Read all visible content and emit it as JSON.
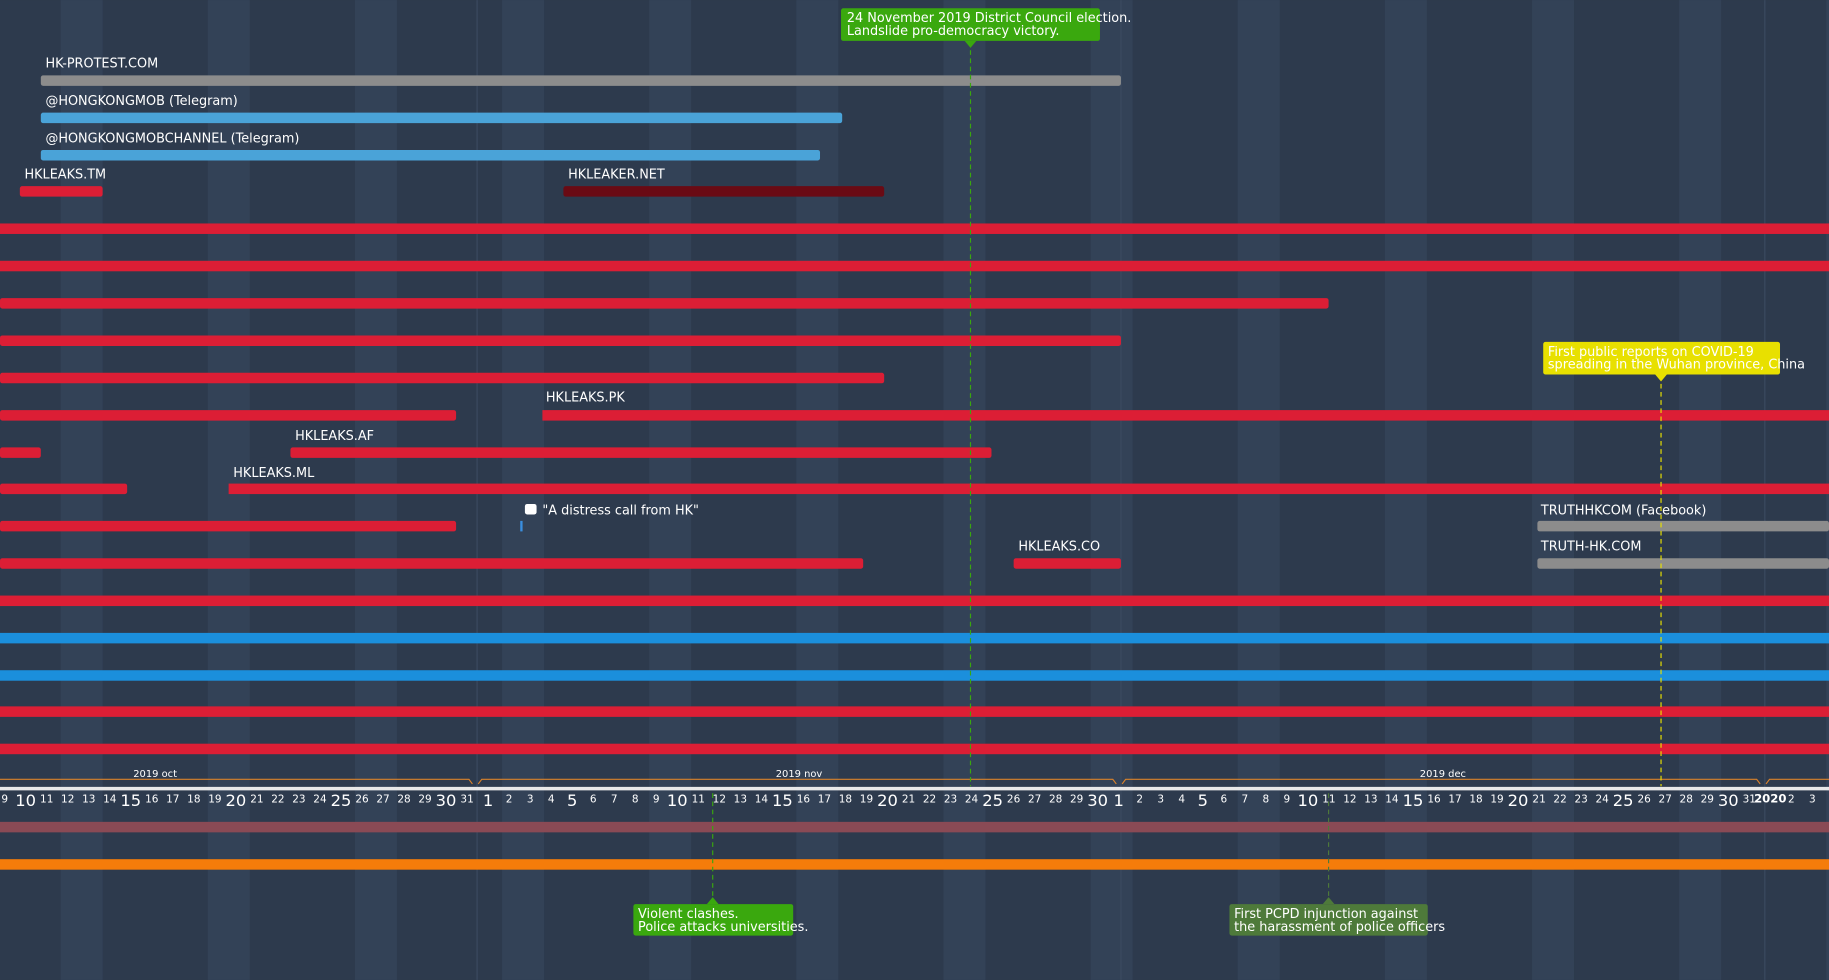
{
  "annotations": [
    {
      "lines": [
        "24 November 2019 District Council election.",
        "Landslide pro-democracy victory."
      ]
    },
    {
      "lines": [
        "First public reports on COVID-19",
        "spreading in the Wuhan province, China"
      ]
    },
    {
      "lines": [
        "Violent clashes.",
        "Police attacks universities."
      ]
    },
    {
      "lines": [
        "First PCPD injunction against",
        "the harassment of police officers"
      ]
    }
  ],
  "tracks": [
    "HK-PROTEST.COM",
    "@HONGKONGMOB (Telegram)",
    "@HONGKONGMOBCHANNEL (Telegram)",
    "HKLEAKS.TM",
    "HKLEAKER.NET",
    "HKLEAKS.PK",
    "HKLEAKS.AF",
    "HKLEAKS.ML",
    "\"A distress call from HK\"",
    "TRUTHHKCOM (Facebook)",
    "TRUTH-HK.COM",
    "HKLEAKS.CO"
  ],
  "axis": {
    "months": [
      "2019 oct",
      "2019 nov",
      "2019 dec"
    ],
    "days": [
      "9",
      "10",
      "11",
      "12",
      "13",
      "14",
      "15",
      "16",
      "17",
      "18",
      "19",
      "20",
      "21",
      "22",
      "23",
      "24",
      "25",
      "26",
      "27",
      "28",
      "29",
      "30",
      "31",
      "1",
      "2",
      "3",
      "4",
      "5",
      "6",
      "7",
      "8",
      "9",
      "10",
      "11",
      "12",
      "13",
      "14",
      "15",
      "16",
      "17",
      "18",
      "19",
      "20",
      "21",
      "22",
      "23",
      "24",
      "25",
      "26",
      "27",
      "28",
      "29",
      "30",
      "1",
      "2",
      "3",
      "4",
      "5",
      "6",
      "7",
      "8",
      "9",
      "10",
      "11",
      "12",
      "13",
      "14",
      "15",
      "16",
      "17",
      "18",
      "19",
      "20",
      "21",
      "22",
      "23",
      "24",
      "25",
      "26",
      "27",
      "28",
      "29",
      "30",
      "31",
      "2020",
      "2",
      "3"
    ]
  }
}
